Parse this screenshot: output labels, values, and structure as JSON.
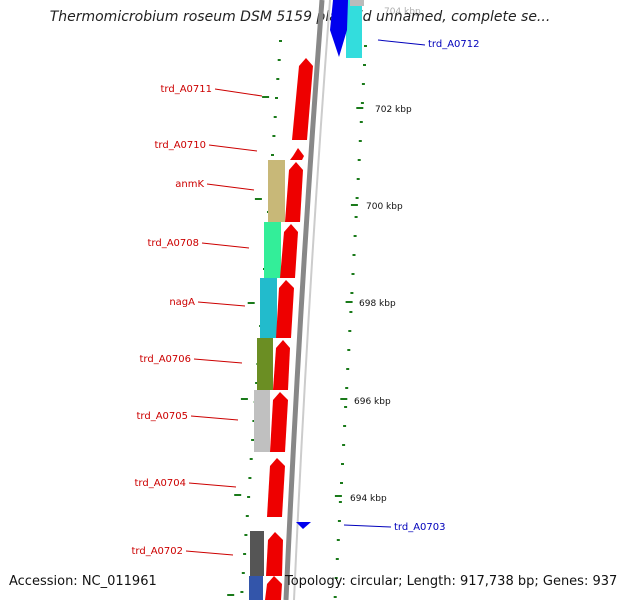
{
  "title": "Thermomicrobium roseum DSM 5159 plasmid unnamed, complete se...",
  "accession": "Accession: NC_011961",
  "summary": "Topology: circular; Length: 917,738 bp; Genes: 937",
  "colors": {
    "forward_gene": "#ee0000",
    "reverse_gene": "#0000ee",
    "tick": "#1a7a1a",
    "backbone": "#888888"
  },
  "reverse_labels": [
    {
      "text": "trd_A0711",
      "color": "#cc0000"
    },
    {
      "text": "trd_A0710",
      "color": "#cc0000"
    },
    {
      "text": "anmK",
      "color": "#cc0000"
    },
    {
      "text": "trd_A0708",
      "color": "#cc0000"
    },
    {
      "text": "nagA",
      "color": "#cc0000"
    },
    {
      "text": "trd_A0706",
      "color": "#cc0000"
    },
    {
      "text": "trd_A0705",
      "color": "#cc0000"
    },
    {
      "text": "trd_A0704",
      "color": "#cc0000"
    },
    {
      "text": "trd_A0702",
      "color": "#cc0000"
    }
  ],
  "forward_labels": [
    {
      "text": "trd_A0712",
      "color": "#0000bb"
    },
    {
      "text": "trd_A0703",
      "color": "#0000bb"
    }
  ],
  "position_labels": [
    "704 kbp",
    "702 kbp",
    "700 kbp",
    "698 kbp",
    "696 kbp",
    "694 kbp"
  ],
  "cog_colors": [
    "#c8b878",
    "#33ee99",
    "#22bbcc",
    "#6b8e23",
    "#c0c0c0",
    "#555555",
    "#3355aa"
  ]
}
